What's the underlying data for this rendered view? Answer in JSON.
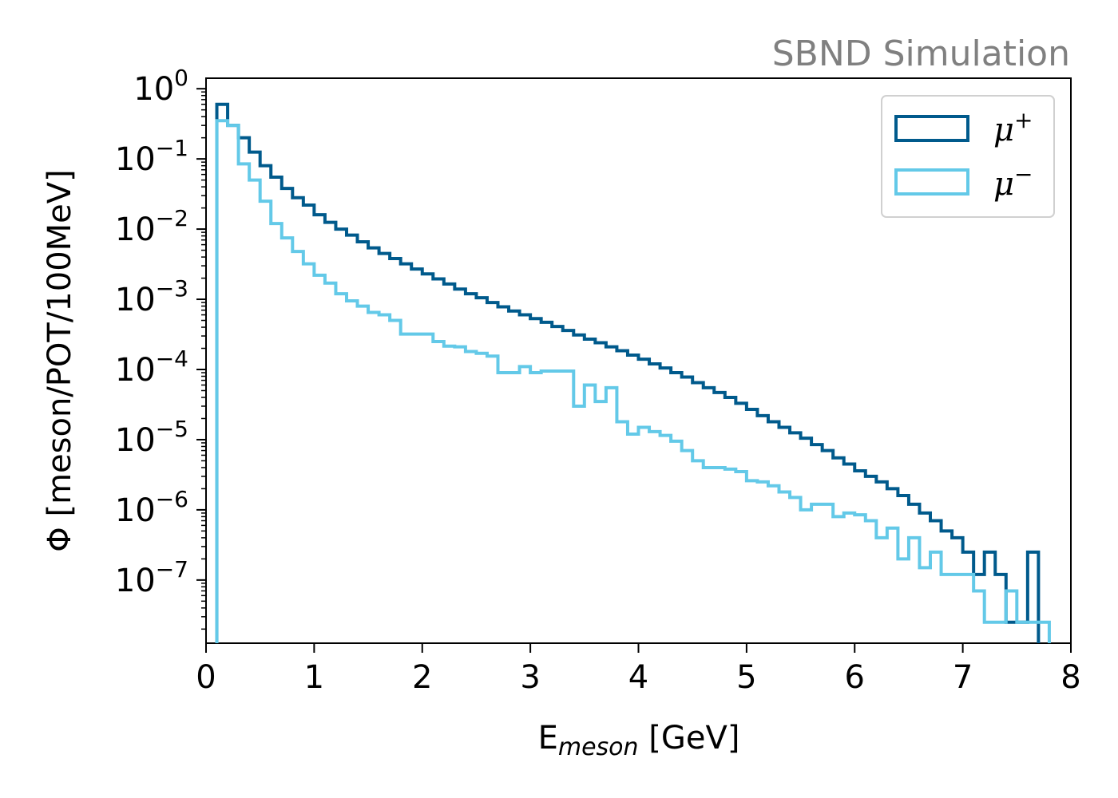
{
  "chart_data": {
    "type": "line",
    "subtype": "step-histogram",
    "annotation": "SBND Simulation",
    "xlabel_main": "E",
    "xlabel_sub": "meson",
    "xlabel_unit": " [GeV]",
    "ylabel": "Φ [meson/POT/100MeV]",
    "xlim": [
      0,
      8
    ],
    "ylim_log10": [
      -7.9,
      0.15
    ],
    "y_scale": "log",
    "x_ticks": [
      "0",
      "1",
      "2",
      "3",
      "4",
      "5",
      "6",
      "7",
      "8"
    ],
    "y_tick_exponents": [
      "0",
      "−1",
      "−2",
      "−3",
      "−4",
      "−5",
      "−6",
      "−7"
    ],
    "y_tick_base": "10",
    "legend_position": "top-right",
    "bin_edges_start": 0.1,
    "bin_width": 0.1,
    "series": [
      {
        "name": "μ",
        "sup": "+",
        "color": "#005a8c",
        "values": [
          0.6,
          0.3,
          0.2,
          0.125,
          0.08,
          0.055,
          0.038,
          0.028,
          0.022,
          0.016,
          0.0125,
          0.01,
          0.0082,
          0.0066,
          0.0054,
          0.0045,
          0.0038,
          0.0032,
          0.0027,
          0.0023,
          0.00195,
          0.00165,
          0.0014,
          0.0012,
          0.00105,
          0.0009,
          0.00078,
          0.00068,
          0.0006,
          0.00053,
          0.00047,
          0.00041,
          0.00036,
          0.00031,
          0.00027,
          0.00024,
          0.00021,
          0.000185,
          0.00016,
          0.00014,
          0.00012,
          0.000105,
          9e-05,
          7.8e-05,
          6.5e-05,
          5.5e-05,
          4.7e-05,
          4e-05,
          3.3e-05,
          2.7e-05,
          2.2e-05,
          1.8e-05,
          1.5e-05,
          1.25e-05,
          1.05e-05,
          8.5e-06,
          7e-06,
          5.5e-06,
          4.5e-06,
          3.6e-06,
          3e-06,
          2.5e-06,
          2e-06,
          1.6e-06,
          1.2e-06,
          9e-07,
          7e-07,
          5e-07,
          4e-07,
          2.5e-07,
          1.2e-07,
          2.5e-07,
          1.2e-07,
          2.5e-08,
          2.5e-08,
          2.5e-07
        ]
      },
      {
        "name": "μ",
        "sup": "−",
        "color": "#63c9e8",
        "values": [
          0.35,
          0.3,
          0.085,
          0.05,
          0.025,
          0.012,
          0.0075,
          0.0048,
          0.0032,
          0.0022,
          0.0017,
          0.0012,
          0.00095,
          0.0008,
          0.00065,
          0.0006,
          0.0005,
          0.00032,
          0.00032,
          0.00032,
          0.00025,
          0.000215,
          0.00021,
          0.00018,
          0.00017,
          0.000155,
          9e-05,
          9e-05,
          0.00011,
          9e-05,
          9.5e-05,
          9.5e-05,
          9.5e-05,
          3e-05,
          6e-05,
          3.5e-05,
          5.5e-05,
          1.8e-05,
          1.2e-05,
          1.5e-05,
          1.3e-05,
          1.15e-05,
          9.5e-06,
          7e-06,
          5e-06,
          4e-06,
          4e-06,
          3.8e-06,
          3.5e-06,
          2.6e-06,
          2.5e-06,
          2.2e-06,
          1.8e-06,
          1.5e-06,
          1e-06,
          1.2e-06,
          1.2e-06,
          8e-07,
          9e-07,
          8.5e-07,
          7e-07,
          4e-07,
          5.5e-07,
          2e-07,
          4e-07,
          1.5e-07,
          2.5e-07,
          1.2e-07,
          1.2e-07,
          1.2e-07,
          7e-08,
          2.5e-08,
          2.5e-08,
          7e-08,
          2.5e-08,
          2.5e-08,
          2.5e-08
        ]
      }
    ]
  }
}
